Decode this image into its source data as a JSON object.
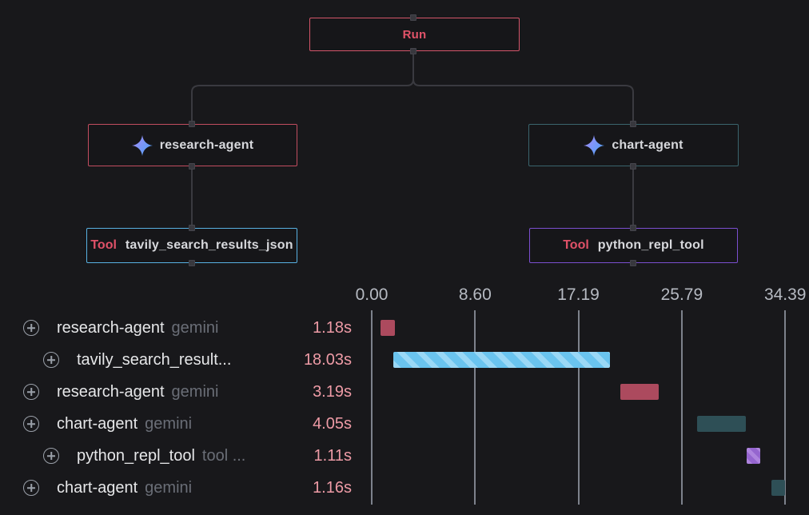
{
  "app": {
    "title": "agent trace view"
  },
  "colors": {
    "background": "#18181b",
    "run_border": "#d4556a",
    "run_text": "#e25369",
    "agent_red_border": "#c24d60",
    "agent_teal_border": "#3a656d",
    "tool_blue_border": "#58b1e2",
    "tool_purple_border": "#7b4fd0",
    "tool_badge_text": "#e05168",
    "node_text": "#d7d8dc",
    "edge": "#3a3a40",
    "grid": "#7d828c",
    "axis_text": "#b6bac2",
    "row_name": "#e6e7e9",
    "row_tag": "#6a6e77",
    "duration_text": "#ee9ba6",
    "bar_red": "#ac4a5e",
    "bar_teal": "#2e4f56",
    "bar_blue": "#6ac4ef",
    "bar_blue_stripe": "#9ad8f6",
    "bar_purple": "#9565cf",
    "bar_purple_stripe": "#ae84de"
  },
  "graph": {
    "run": {
      "label": "Run"
    },
    "research_agent": {
      "label": "research-agent",
      "icon": "sparkle-icon"
    },
    "chart_agent": {
      "label": "chart-agent",
      "icon": "sparkle-icon"
    },
    "tavily_tool": {
      "badge": "Tool",
      "label": "tavily_search_results_json"
    },
    "python_tool": {
      "badge": "Tool",
      "label": "python_repl_tool"
    }
  },
  "timeline": {
    "axis": {
      "ticks": [
        {
          "label": "0.00",
          "t": 0
        },
        {
          "label": "8.60",
          "t": 8.6
        },
        {
          "label": "17.19",
          "t": 17.19
        },
        {
          "label": "25.79",
          "t": 25.79
        },
        {
          "label": "34.39",
          "t": 34.39
        }
      ]
    },
    "rows": [
      {
        "name": "research-agent",
        "tag": "gemini",
        "duration": "1.18s",
        "depth": 0,
        "start": 0.75,
        "seconds": 1.18,
        "color": "red",
        "striped": false
      },
      {
        "name": "tavily_search_result...",
        "tag": "",
        "duration": "18.03s",
        "depth": 1,
        "start": 1.8,
        "seconds": 18.03,
        "color": "blue",
        "striped": true
      },
      {
        "name": "research-agent",
        "tag": "gemini",
        "duration": "3.19s",
        "depth": 0,
        "start": 20.7,
        "seconds": 3.19,
        "color": "red",
        "striped": false
      },
      {
        "name": "chart-agent",
        "tag": "gemini",
        "duration": "4.05s",
        "depth": 0,
        "start": 27.05,
        "seconds": 4.05,
        "color": "teal",
        "striped": false
      },
      {
        "name": "python_repl_tool",
        "tag": "tool ...",
        "duration": "1.11s",
        "depth": 1,
        "start": 31.2,
        "seconds": 1.11,
        "color": "purple",
        "striped": true
      },
      {
        "name": "chart-agent",
        "tag": "gemini",
        "duration": "1.16s",
        "depth": 0,
        "start": 33.23,
        "seconds": 1.16,
        "color": "teal",
        "striped": false
      }
    ]
  },
  "chart_data": {
    "type": "gantt",
    "title": "Run timeline",
    "x_unit": "seconds",
    "x_range": [
      0,
      34.39
    ],
    "x_ticks": [
      0.0,
      8.6,
      17.19,
      25.79,
      34.39
    ],
    "rows": [
      {
        "label": "research-agent gemini",
        "start_s": 0.75,
        "duration_s": 1.18
      },
      {
        "label": "tavily_search_results_json",
        "start_s": 1.8,
        "duration_s": 18.03
      },
      {
        "label": "research-agent gemini",
        "start_s": 20.7,
        "duration_s": 3.19
      },
      {
        "label": "chart-agent gemini",
        "start_s": 27.05,
        "duration_s": 4.05
      },
      {
        "label": "python_repl_tool tool",
        "start_s": 31.2,
        "duration_s": 1.11
      },
      {
        "label": "chart-agent gemini",
        "start_s": 33.23,
        "duration_s": 1.16
      }
    ]
  }
}
